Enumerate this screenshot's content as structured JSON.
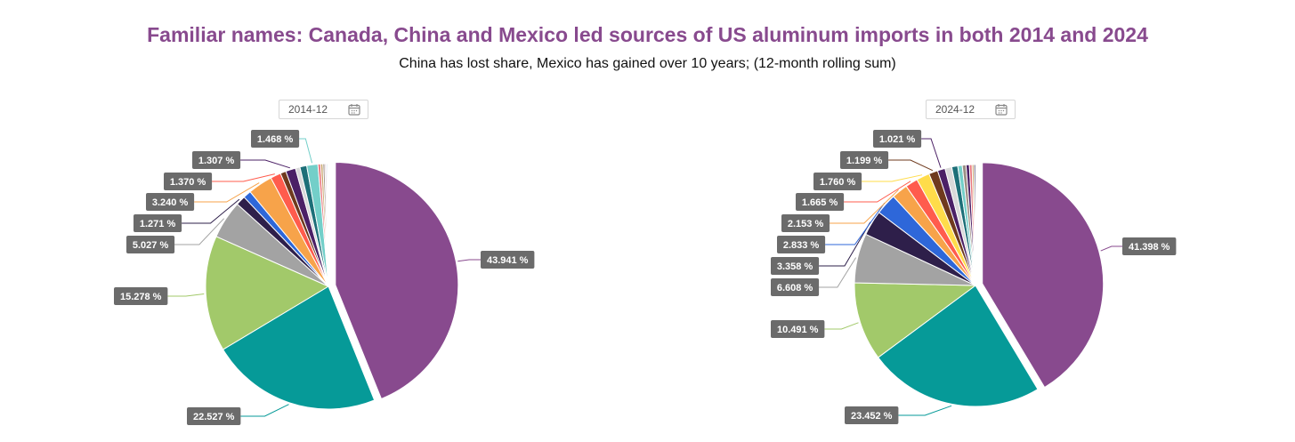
{
  "header": {
    "title": "Familiar names: Canada, China and Mexico led sources of US aluminum imports in both 2014 and 2024",
    "subtitle": "China has lost share, Mexico has gained over 10 years; (12-month rolling sum)"
  },
  "colors": {
    "title": "#884a8e",
    "label_bg": "#6b6b6b",
    "palette": [
      "#884a8e",
      "#069a98",
      "#a2c96a",
      "#a3a3a3",
      "#2e1f4a",
      "#2e67d9",
      "#f7a34a",
      "#ff5c4d",
      "#ffdc4a",
      "#6f3a1e",
      "#4b2066",
      "#d9d9d9",
      "#1d6f78",
      "#73cfc9",
      "#e8747c",
      "#c9a66b",
      "#9c8f84",
      "#e0c8d7",
      "#b4d4e8",
      "#c7e3b0"
    ]
  },
  "chart_data": [
    {
      "type": "pie",
      "date_filter": "2014-12",
      "slices": [
        {
          "value": 43.941,
          "label": "43.941 %",
          "color": "#884a8e",
          "exploded": true
        },
        {
          "value": 22.527,
          "label": "22.527 %",
          "color": "#069a98"
        },
        {
          "value": 15.278,
          "label": "15.278 %",
          "color": "#a2c96a"
        },
        {
          "value": 5.027,
          "label": "5.027 %",
          "color": "#a3a3a3"
        },
        {
          "value": 1.271,
          "label": "1.271 %",
          "color": "#2e1f4a"
        },
        {
          "value": 1.05,
          "label": "",
          "color": "#2e67d9"
        },
        {
          "value": 3.24,
          "label": "3.240 %",
          "color": "#f7a34a"
        },
        {
          "value": 1.37,
          "label": "1.370 %",
          "color": "#ff5c4d"
        },
        {
          "value": 0.75,
          "label": "",
          "color": "#6f3a1e"
        },
        {
          "value": 1.307,
          "label": "1.307 %",
          "color": "#4b2066"
        },
        {
          "value": 0.6,
          "label": "",
          "color": "#d9d9d9"
        },
        {
          "value": 0.9,
          "label": "",
          "color": "#1d6f78"
        },
        {
          "value": 1.468,
          "label": "1.468 %",
          "color": "#73cfc9"
        },
        {
          "value": 0.35,
          "label": "",
          "color": "#e8747c"
        },
        {
          "value": 0.3,
          "label": "",
          "color": "#c9a66b"
        },
        {
          "value": 0.25,
          "label": "",
          "color": "#9c8f84"
        },
        {
          "value": 0.2,
          "label": "",
          "color": "#e0c8d7"
        },
        {
          "value": 0.15,
          "label": "",
          "color": "#b4d4e8"
        },
        {
          "value": 0.12,
          "label": "",
          "color": "#c7e3b0"
        }
      ]
    },
    {
      "type": "pie",
      "date_filter": "2024-12",
      "slices": [
        {
          "value": 41.398,
          "label": "41.398 %",
          "color": "#884a8e",
          "exploded": true
        },
        {
          "value": 23.452,
          "label": "23.452 %",
          "color": "#069a98"
        },
        {
          "value": 10.491,
          "label": "10.491 %",
          "color": "#a2c96a"
        },
        {
          "value": 6.608,
          "label": "6.608 %",
          "color": "#a3a3a3"
        },
        {
          "value": 3.358,
          "label": "3.358 %",
          "color": "#2e1f4a"
        },
        {
          "value": 2.833,
          "label": "2.833 %",
          "color": "#2e67d9"
        },
        {
          "value": 2.153,
          "label": "2.153 %",
          "color": "#f7a34a"
        },
        {
          "value": 1.665,
          "label": "1.665 %",
          "color": "#ff5c4d"
        },
        {
          "value": 1.76,
          "label": "1.760 %",
          "color": "#ffdc4a"
        },
        {
          "value": 1.199,
          "label": "1.199 %",
          "color": "#6f3a1e"
        },
        {
          "value": 1.021,
          "label": "1.021 %",
          "color": "#4b2066"
        },
        {
          "value": 0.9,
          "label": "",
          "color": "#d9d9d9"
        },
        {
          "value": 0.8,
          "label": "",
          "color": "#1d6f78"
        },
        {
          "value": 0.6,
          "label": "",
          "color": "#73cfc9"
        },
        {
          "value": 0.5,
          "label": "",
          "color": "#9c8f84"
        },
        {
          "value": 0.45,
          "label": "",
          "color": "#4b2066"
        },
        {
          "value": 0.35,
          "label": "",
          "color": "#e8747c"
        },
        {
          "value": 0.25,
          "label": "",
          "color": "#c9a66b"
        },
        {
          "value": 0.2,
          "label": "",
          "color": "#2e1f4a"
        }
      ]
    }
  ]
}
